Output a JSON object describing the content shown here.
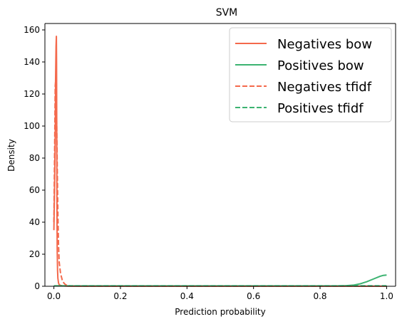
{
  "chart_data": {
    "type": "line",
    "title": "SVM",
    "xlabel": "Prediction probability",
    "ylabel": "Density",
    "xlim": [
      -0.027,
      1.027
    ],
    "ylim": [
      0,
      164
    ],
    "x_ticks": [
      0.0,
      0.2,
      0.4,
      0.6,
      0.8,
      1.0
    ],
    "x_tick_labels": [
      "0.0",
      "0.2",
      "0.4",
      "0.6",
      "0.8",
      "1.0"
    ],
    "y_ticks": [
      0,
      20,
      40,
      60,
      80,
      100,
      120,
      140,
      160
    ],
    "y_tick_labels": [
      "0",
      "20",
      "40",
      "60",
      "80",
      "100",
      "120",
      "140",
      "160"
    ],
    "grid": false,
    "legend_position": "top-right",
    "series": [
      {
        "name": "Negatives bow",
        "color": "#f4694c",
        "dash": "solid",
        "x": [
          0.0,
          0.002,
          0.004,
          0.005,
          0.0065,
          0.0075,
          0.008,
          0.0085,
          0.009,
          0.0095,
          0.01,
          0.011,
          0.012,
          0.014,
          0.016,
          0.02,
          0.025,
          0.03,
          0.04,
          0.05,
          0.1,
          0.3,
          0.6,
          0.9,
          1.0
        ],
        "y": [
          35,
          62,
          95,
          128,
          150,
          156,
          140,
          105,
          65,
          38,
          22,
          10,
          5,
          2,
          1,
          0.5,
          0.3,
          0.2,
          0.1,
          0.05,
          0.05,
          0.05,
          0.05,
          0.05,
          0.05
        ]
      },
      {
        "name": "Positives bow",
        "color": "#3cb371",
        "dash": "solid",
        "x": [
          0.0,
          0.2,
          0.4,
          0.6,
          0.7,
          0.8,
          0.85,
          0.88,
          0.9,
          0.92,
          0.94,
          0.96,
          0.98,
          0.99,
          1.0
        ],
        "y": [
          0.2,
          0.2,
          0.2,
          0.2,
          0.2,
          0.2,
          0.25,
          0.4,
          0.7,
          1.5,
          2.8,
          4.5,
          6.2,
          6.8,
          7.0
        ]
      },
      {
        "name": "Negatives tfidf",
        "color": "#f4694c",
        "dash": "dashed",
        "x": [
          0.0,
          0.002,
          0.004,
          0.006,
          0.008,
          0.01,
          0.012,
          0.014,
          0.016,
          0.02,
          0.025,
          0.03,
          0.035,
          0.04,
          0.05,
          0.1,
          0.3,
          0.6,
          0.9,
          1.0
        ],
        "y": [
          40,
          80,
          125,
          130,
          110,
          75,
          45,
          25,
          15,
          8,
          4,
          2,
          1,
          0.5,
          0.2,
          0.05,
          0.05,
          0.05,
          0.05,
          0.05
        ]
      },
      {
        "name": "Positives tfidf",
        "color": "#3cb371",
        "dash": "dashed",
        "x": [
          0.0,
          0.1,
          0.3,
          0.5,
          0.7,
          0.8,
          0.85,
          0.9,
          0.95,
          1.0
        ],
        "y": [
          0.3,
          0.3,
          0.3,
          0.3,
          0.3,
          0.3,
          0.3,
          0.3,
          0.3,
          0.3
        ]
      }
    ]
  }
}
